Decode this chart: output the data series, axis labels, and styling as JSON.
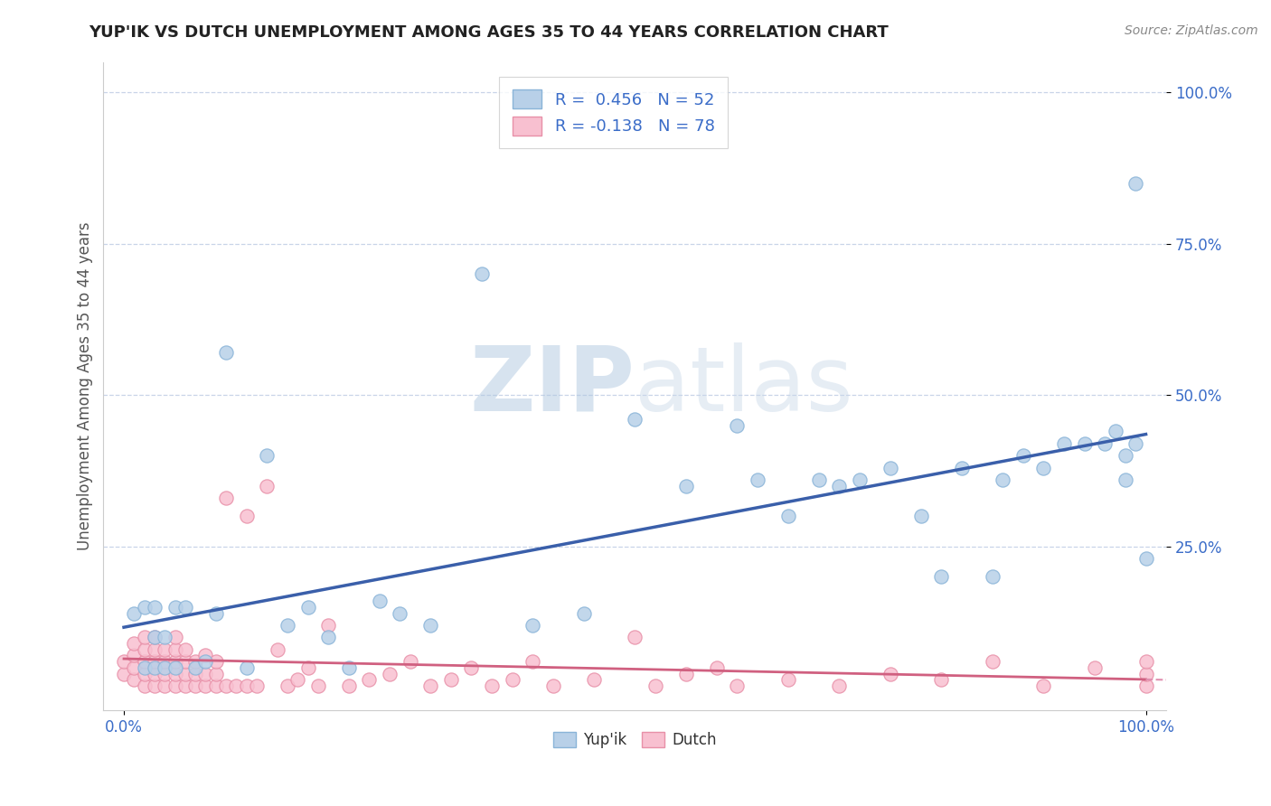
{
  "title": "YUP'IK VS DUTCH UNEMPLOYMENT AMONG AGES 35 TO 44 YEARS CORRELATION CHART",
  "source_text": "Source: ZipAtlas.com",
  "ylabel": "Unemployment Among Ages 35 to 44 years",
  "xlim": [
    -0.02,
    1.02
  ],
  "ylim": [
    -0.02,
    1.05
  ],
  "xtick_labels": [
    "0.0%",
    "100.0%"
  ],
  "xtick_values": [
    0.0,
    1.0
  ],
  "ytick_labels": [
    "100.0%",
    "75.0%",
    "50.0%",
    "25.0%"
  ],
  "ytick_values": [
    1.0,
    0.75,
    0.5,
    0.25
  ],
  "yup_ik_color": "#b8d0e8",
  "yup_ik_edge_color": "#8ab4d8",
  "dutch_color": "#f8c0d0",
  "dutch_edge_color": "#e890a8",
  "trend_yupik_color": "#3a5faa",
  "trend_dutch_color": "#d06080",
  "trend_dutch_dashed_color": "#e090b0",
  "R_yupik": 0.456,
  "N_yupik": 52,
  "R_dutch": -0.138,
  "N_dutch": 78,
  "watermark_zip": "ZIP",
  "watermark_atlas": "atlas",
  "background_color": "#ffffff",
  "grid_color": "#c8d4e8",
  "yup_ik_x": [
    0.01,
    0.02,
    0.02,
    0.03,
    0.03,
    0.03,
    0.04,
    0.04,
    0.05,
    0.05,
    0.06,
    0.07,
    0.08,
    0.09,
    0.1,
    0.12,
    0.14,
    0.16,
    0.18,
    0.2,
    0.22,
    0.25,
    0.27,
    0.3,
    0.35,
    0.4,
    0.45,
    0.5,
    0.55,
    0.6,
    0.62,
    0.65,
    0.68,
    0.7,
    0.72,
    0.75,
    0.78,
    0.8,
    0.82,
    0.85,
    0.86,
    0.88,
    0.9,
    0.92,
    0.94,
    0.96,
    0.97,
    0.98,
    0.98,
    0.99,
    0.99,
    1.0
  ],
  "yup_ik_y": [
    0.14,
    0.05,
    0.15,
    0.05,
    0.1,
    0.15,
    0.05,
    0.1,
    0.05,
    0.15,
    0.15,
    0.05,
    0.06,
    0.14,
    0.57,
    0.05,
    0.4,
    0.12,
    0.15,
    0.1,
    0.05,
    0.16,
    0.14,
    0.12,
    0.7,
    0.12,
    0.14,
    0.46,
    0.35,
    0.45,
    0.36,
    0.3,
    0.36,
    0.35,
    0.36,
    0.38,
    0.3,
    0.2,
    0.38,
    0.2,
    0.36,
    0.4,
    0.38,
    0.42,
    0.42,
    0.42,
    0.44,
    0.36,
    0.4,
    0.42,
    0.85,
    0.23
  ],
  "dutch_x": [
    0.0,
    0.0,
    0.01,
    0.01,
    0.01,
    0.01,
    0.02,
    0.02,
    0.02,
    0.02,
    0.02,
    0.03,
    0.03,
    0.03,
    0.03,
    0.03,
    0.04,
    0.04,
    0.04,
    0.04,
    0.05,
    0.05,
    0.05,
    0.05,
    0.05,
    0.06,
    0.06,
    0.06,
    0.06,
    0.07,
    0.07,
    0.07,
    0.08,
    0.08,
    0.08,
    0.09,
    0.09,
    0.09,
    0.1,
    0.1,
    0.11,
    0.12,
    0.12,
    0.13,
    0.14,
    0.15,
    0.16,
    0.17,
    0.18,
    0.19,
    0.2,
    0.22,
    0.24,
    0.26,
    0.28,
    0.3,
    0.32,
    0.34,
    0.36,
    0.38,
    0.4,
    0.42,
    0.46,
    0.5,
    0.52,
    0.55,
    0.58,
    0.6,
    0.65,
    0.7,
    0.75,
    0.8,
    0.85,
    0.9,
    0.95,
    1.0,
    1.0,
    1.0
  ],
  "dutch_y": [
    0.04,
    0.06,
    0.03,
    0.05,
    0.07,
    0.09,
    0.02,
    0.04,
    0.06,
    0.08,
    0.1,
    0.02,
    0.04,
    0.06,
    0.08,
    0.1,
    0.02,
    0.04,
    0.06,
    0.08,
    0.02,
    0.04,
    0.06,
    0.08,
    0.1,
    0.02,
    0.04,
    0.06,
    0.08,
    0.02,
    0.04,
    0.06,
    0.02,
    0.04,
    0.07,
    0.02,
    0.04,
    0.06,
    0.02,
    0.33,
    0.02,
    0.02,
    0.3,
    0.02,
    0.35,
    0.08,
    0.02,
    0.03,
    0.05,
    0.02,
    0.12,
    0.02,
    0.03,
    0.04,
    0.06,
    0.02,
    0.03,
    0.05,
    0.02,
    0.03,
    0.06,
    0.02,
    0.03,
    0.1,
    0.02,
    0.04,
    0.05,
    0.02,
    0.03,
    0.02,
    0.04,
    0.03,
    0.06,
    0.02,
    0.05,
    0.02,
    0.04,
    0.06
  ]
}
